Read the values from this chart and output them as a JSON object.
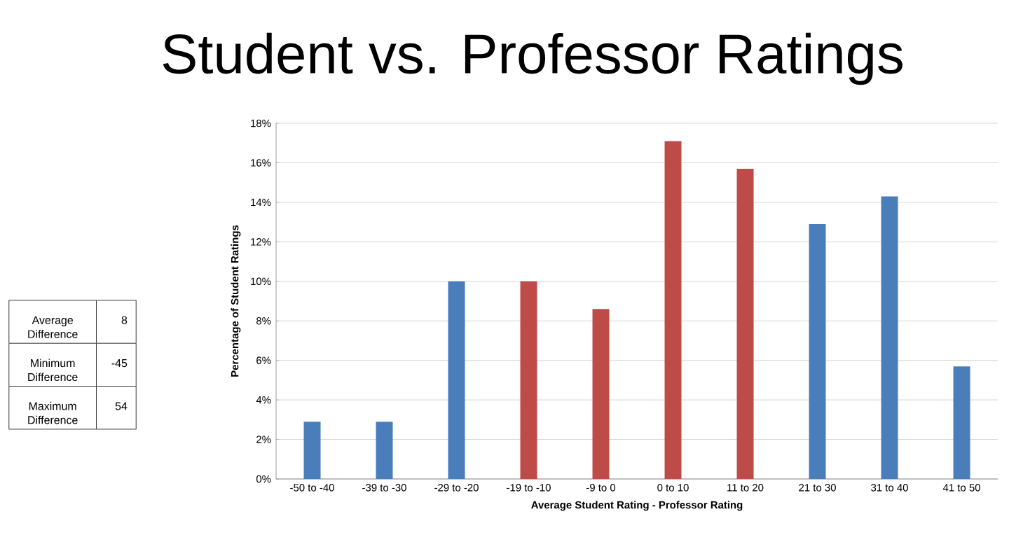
{
  "chart_data": {
    "type": "bar",
    "title": "Student vs. Professor Ratings",
    "xlabel": "Average Student Rating - Professor Rating",
    "ylabel": "Percentage of Student Ratings",
    "categories": [
      "-50 to -40",
      "-39 to -30",
      "-29 to -20",
      "-19 to -10",
      "-9 to 0",
      "0 to 10",
      "11 to 20",
      "21 to 30",
      "31 to 40",
      "41 to 50"
    ],
    "values": [
      2.9,
      2.9,
      10,
      10,
      8.6,
      17.1,
      15.7,
      12.9,
      14.3,
      5.7
    ],
    "colors": [
      "#4a7ebb",
      "#4a7ebb",
      "#4a7ebb",
      "#be4b48",
      "#be4b48",
      "#be4b48",
      "#be4b48",
      "#4a7ebb",
      "#4a7ebb",
      "#4a7ebb"
    ],
    "ylim": [
      0,
      18
    ],
    "yticks": [
      {
        "value": 0,
        "label": "0%"
      },
      {
        "value": 2,
        "label": "2%"
      },
      {
        "value": 4,
        "label": "4%"
      },
      {
        "value": 6,
        "label": "6%"
      },
      {
        "value": 8,
        "label": "8%"
      },
      {
        "value": 10,
        "label": "10%"
      },
      {
        "value": 12,
        "label": "12%"
      },
      {
        "value": 14,
        "label": "14%"
      },
      {
        "value": 16,
        "label": "16%"
      },
      {
        "value": 18,
        "label": "18%"
      }
    ],
    "grid": "y",
    "annotations": [
      "Average Difference",
      "8",
      "Minimum Difference",
      "-45",
      "Maximum Difference",
      "54"
    ]
  }
}
